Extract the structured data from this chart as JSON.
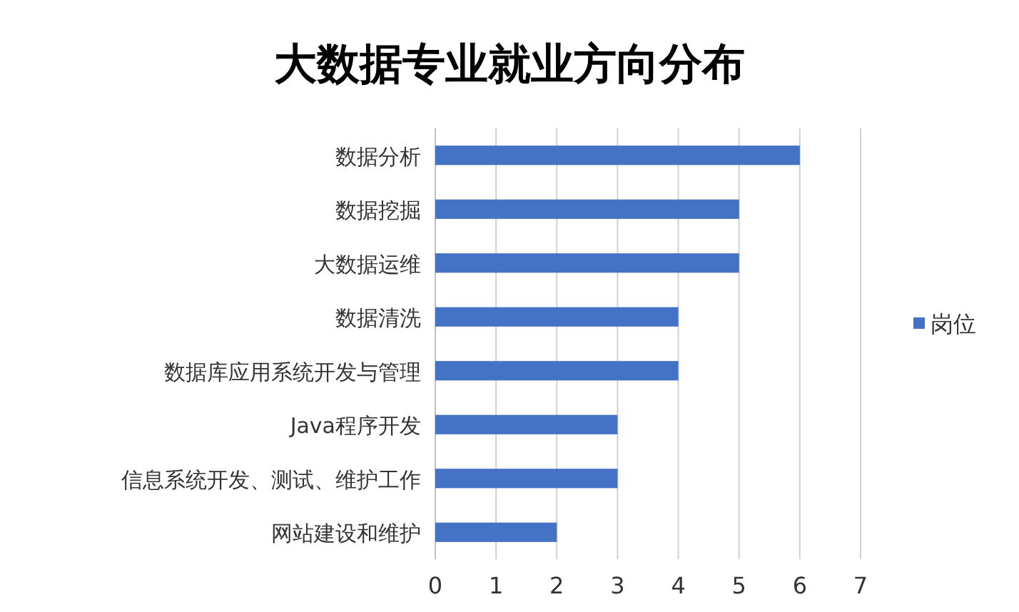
{
  "chart_data": {
    "type": "bar",
    "title": "大数据专业就业方向分布",
    "orientation": "horizontal",
    "categories": [
      "数据分析",
      "数据挖掘",
      "大数据运维",
      "数据清洗",
      "数据库应用系统开发与管理",
      "Java程序开发",
      "信息系统开发、测试、维护工作",
      "网站建设和维护"
    ],
    "series": [
      {
        "name": "岗位",
        "color": "#4472c4",
        "values": [
          6,
          5,
          5,
          4,
          4,
          3,
          3,
          2
        ]
      }
    ],
    "xlim": [
      0,
      7
    ],
    "xticks": [
      0,
      1,
      2,
      3,
      4,
      5,
      6,
      7
    ],
    "grid": "x",
    "legend": "right"
  }
}
